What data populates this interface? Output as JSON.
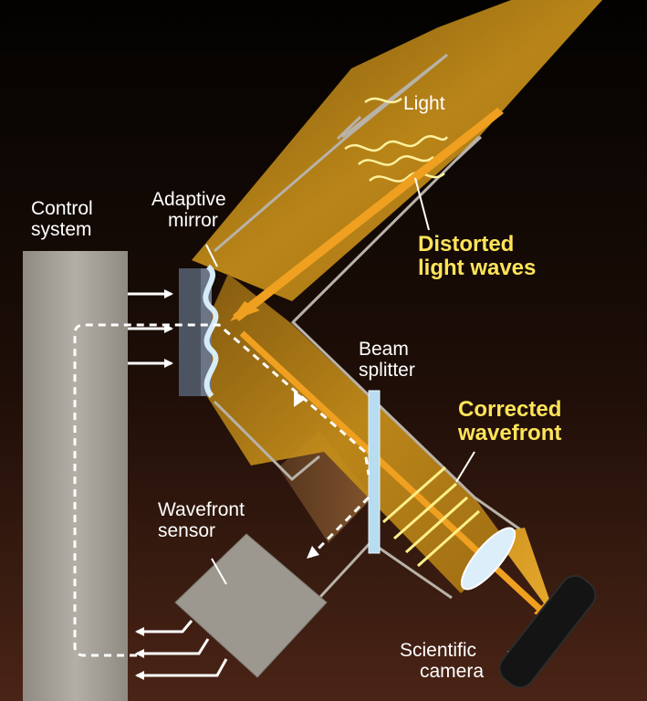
{
  "labels": {
    "light": "Light",
    "distorted": [
      "Distorted",
      "light waves"
    ],
    "adaptive_mirror": [
      "Adaptive",
      "mirror"
    ],
    "control_system": [
      "Control",
      "system"
    ],
    "beam_splitter": [
      "Beam",
      "splitter"
    ],
    "corrected_wavefront": [
      "Corrected",
      "wavefront"
    ],
    "wavefront_sensor": [
      "Wavefront",
      "sensor"
    ],
    "scientific_camera": [
      "Scientific",
      "camera"
    ]
  },
  "colors": {
    "background_top": "#030201",
    "background_bottom": "#4a2416",
    "beam": "#c8901a",
    "arrow": "#f0a020",
    "label_yellow": "#ffe45a",
    "mirror_blue": "#cfe6f5",
    "panel_gray": "#a6a298"
  }
}
